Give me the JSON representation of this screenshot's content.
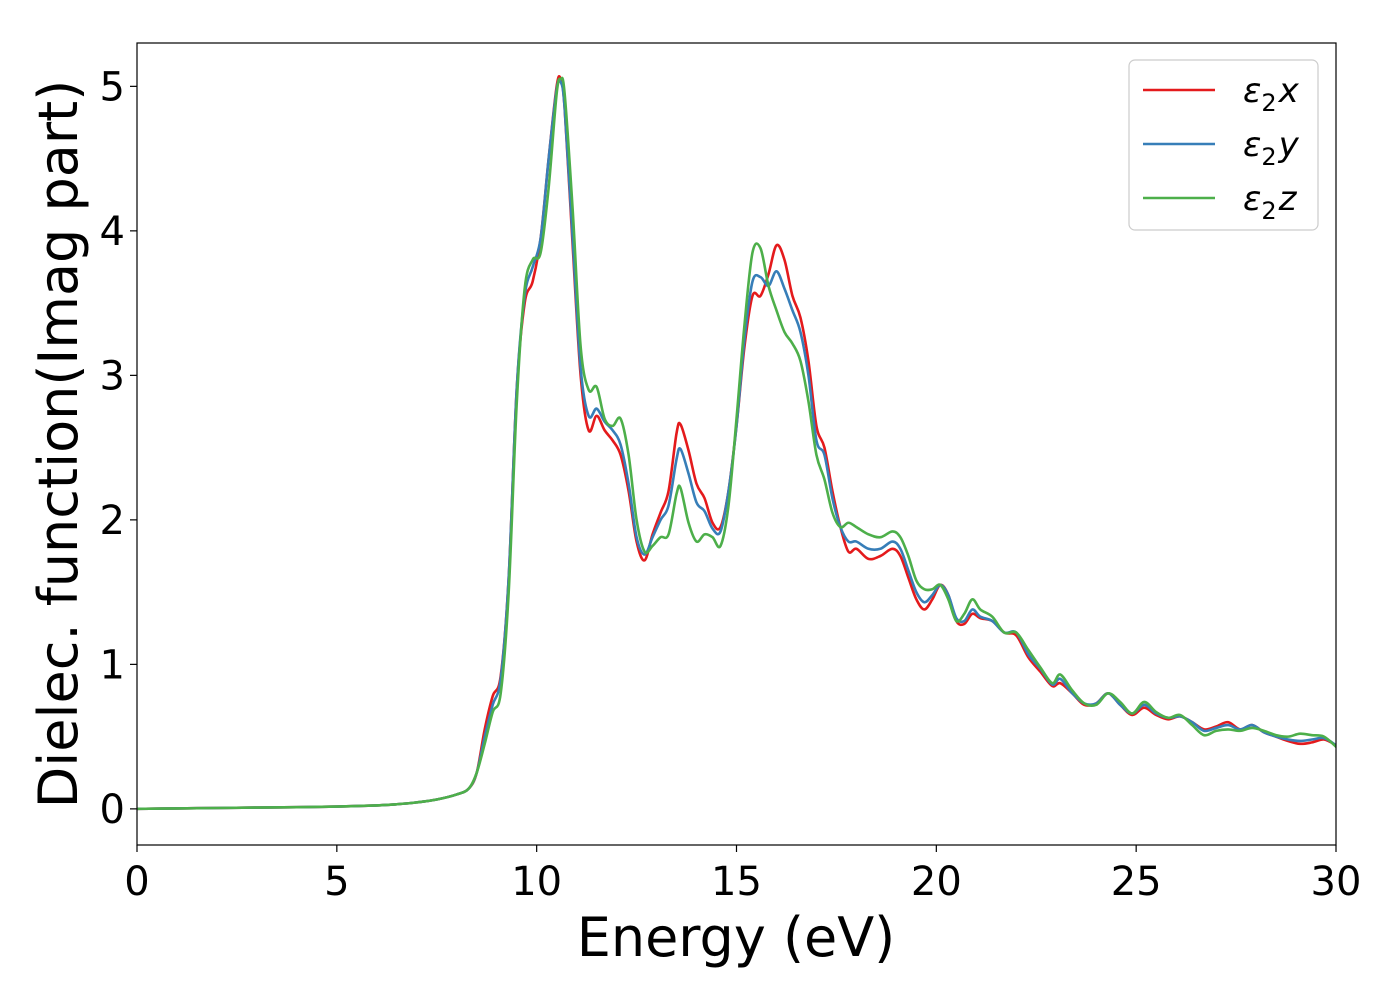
{
  "chart_data": {
    "type": "line",
    "xlabel": "Energy (eV)",
    "ylabel": "Dielec. function(Imag part)",
    "xlim": [
      0,
      30
    ],
    "ylim": [
      -0.25,
      5.3
    ],
    "xticks": [
      0,
      5,
      10,
      15,
      20,
      25,
      30
    ],
    "yticks": [
      0,
      1,
      2,
      3,
      4,
      5
    ],
    "grid": false,
    "legend_position": "top-right",
    "series": [
      {
        "name": "ε₂x",
        "legend": {
          "base": "ε",
          "sub": "2",
          "suffix": "x"
        },
        "color": "#e41a1c",
        "x": [
          0,
          1,
          2,
          3,
          4,
          5,
          6,
          6.5,
          7,
          7.5,
          8,
          8.3,
          8.5,
          8.7,
          8.9,
          9.1,
          9.3,
          9.5,
          9.7,
          9.9,
          10.1,
          10.3,
          10.5,
          10.6,
          10.7,
          10.9,
          11.1,
          11.3,
          11.5,
          11.7,
          11.9,
          12.1,
          12.3,
          12.5,
          12.7,
          12.9,
          13.1,
          13.3,
          13.5,
          13.6,
          13.8,
          14.0,
          14.2,
          14.4,
          14.6,
          14.8,
          15.0,
          15.2,
          15.4,
          15.6,
          15.8,
          16.0,
          16.2,
          16.4,
          16.6,
          16.8,
          17.0,
          17.2,
          17.4,
          17.6,
          17.8,
          18.0,
          18.3,
          18.6,
          18.9,
          19.1,
          19.3,
          19.5,
          19.7,
          19.9,
          20.1,
          20.3,
          20.5,
          20.7,
          20.9,
          21.1,
          21.4,
          21.7,
          22.0,
          22.3,
          22.6,
          22.9,
          23.1,
          23.4,
          23.7,
          24.0,
          24.3,
          24.6,
          24.9,
          25.2,
          25.5,
          25.8,
          26.1,
          26.4,
          26.7,
          27.0,
          27.3,
          27.6,
          27.9,
          28.2,
          28.5,
          28.8,
          29.1,
          29.4,
          29.7,
          30
        ],
        "y": [
          0.0,
          0.003,
          0.006,
          0.009,
          0.012,
          0.016,
          0.024,
          0.032,
          0.045,
          0.065,
          0.1,
          0.14,
          0.25,
          0.55,
          0.78,
          0.92,
          1.6,
          2.9,
          3.5,
          3.65,
          3.95,
          4.5,
          5.0,
          5.05,
          4.85,
          3.9,
          3.0,
          2.62,
          2.72,
          2.62,
          2.55,
          2.45,
          2.2,
          1.85,
          1.72,
          1.9,
          2.05,
          2.2,
          2.6,
          2.66,
          2.48,
          2.25,
          2.15,
          1.98,
          1.95,
          2.2,
          2.65,
          3.2,
          3.55,
          3.55,
          3.7,
          3.9,
          3.8,
          3.55,
          3.4,
          3.1,
          2.65,
          2.5,
          2.2,
          1.95,
          1.78,
          1.8,
          1.73,
          1.75,
          1.8,
          1.75,
          1.6,
          1.45,
          1.38,
          1.45,
          1.55,
          1.48,
          1.3,
          1.28,
          1.35,
          1.32,
          1.3,
          1.22,
          1.2,
          1.05,
          0.95,
          0.85,
          0.87,
          0.8,
          0.72,
          0.73,
          0.8,
          0.72,
          0.65,
          0.7,
          0.65,
          0.62,
          0.64,
          0.6,
          0.55,
          0.57,
          0.6,
          0.55,
          0.58,
          0.53,
          0.5,
          0.47,
          0.45,
          0.46,
          0.48,
          0.44
        ]
      },
      {
        "name": "ε₂y",
        "legend": {
          "base": "ε",
          "sub": "2",
          "suffix": "y"
        },
        "color": "#377eb8",
        "x": [
          0,
          1,
          2,
          3,
          4,
          5,
          6,
          6.5,
          7,
          7.5,
          8,
          8.3,
          8.5,
          8.7,
          8.9,
          9.1,
          9.3,
          9.5,
          9.7,
          9.9,
          10.1,
          10.3,
          10.5,
          10.6,
          10.7,
          10.9,
          11.1,
          11.3,
          11.5,
          11.7,
          11.9,
          12.1,
          12.3,
          12.5,
          12.7,
          12.9,
          13.1,
          13.3,
          13.5,
          13.6,
          13.8,
          14.0,
          14.2,
          14.4,
          14.6,
          14.8,
          15.0,
          15.2,
          15.4,
          15.6,
          15.8,
          16.0,
          16.2,
          16.4,
          16.6,
          16.8,
          17.0,
          17.2,
          17.4,
          17.6,
          17.8,
          18.0,
          18.3,
          18.6,
          18.9,
          19.1,
          19.3,
          19.5,
          19.7,
          19.9,
          20.1,
          20.3,
          20.5,
          20.7,
          20.9,
          21.1,
          21.4,
          21.7,
          22.0,
          22.3,
          22.6,
          22.9,
          23.1,
          23.4,
          23.7,
          24.0,
          24.3,
          24.6,
          24.9,
          25.2,
          25.5,
          25.8,
          26.1,
          26.4,
          26.7,
          27.0,
          27.3,
          27.6,
          27.9,
          28.2,
          28.5,
          28.8,
          29.1,
          29.4,
          29.7,
          30
        ],
        "y": [
          0.0,
          0.003,
          0.006,
          0.009,
          0.012,
          0.016,
          0.024,
          0.032,
          0.045,
          0.065,
          0.1,
          0.14,
          0.25,
          0.5,
          0.72,
          0.9,
          1.6,
          2.9,
          3.55,
          3.75,
          3.95,
          4.5,
          4.98,
          5.03,
          4.85,
          3.95,
          3.05,
          2.72,
          2.77,
          2.68,
          2.62,
          2.52,
          2.25,
          1.88,
          1.76,
          1.88,
          2.0,
          2.1,
          2.42,
          2.49,
          2.32,
          2.12,
          2.06,
          1.94,
          1.92,
          2.2,
          2.65,
          3.25,
          3.65,
          3.68,
          3.62,
          3.72,
          3.6,
          3.45,
          3.3,
          3.0,
          2.55,
          2.45,
          2.15,
          1.95,
          1.85,
          1.85,
          1.8,
          1.8,
          1.85,
          1.8,
          1.65,
          1.5,
          1.43,
          1.48,
          1.55,
          1.48,
          1.32,
          1.3,
          1.38,
          1.33,
          1.3,
          1.22,
          1.22,
          1.07,
          0.97,
          0.86,
          0.9,
          0.8,
          0.73,
          0.73,
          0.8,
          0.72,
          0.66,
          0.72,
          0.66,
          0.63,
          0.64,
          0.6,
          0.54,
          0.56,
          0.58,
          0.55,
          0.58,
          0.53,
          0.5,
          0.48,
          0.47,
          0.48,
          0.49,
          0.44
        ]
      },
      {
        "name": "ε₂z",
        "legend": {
          "base": "ε",
          "sub": "2",
          "suffix": "z"
        },
        "color": "#4daf4a",
        "x": [
          0,
          1,
          2,
          3,
          4,
          5,
          6,
          6.5,
          7,
          7.5,
          8,
          8.3,
          8.5,
          8.7,
          8.9,
          9.1,
          9.3,
          9.5,
          9.7,
          9.9,
          10.1,
          10.3,
          10.5,
          10.6,
          10.7,
          10.9,
          11.1,
          11.3,
          11.5,
          11.7,
          11.9,
          12.1,
          12.3,
          12.5,
          12.7,
          12.9,
          13.1,
          13.3,
          13.5,
          13.6,
          13.8,
          14.0,
          14.2,
          14.4,
          14.6,
          14.8,
          15.0,
          15.2,
          15.4,
          15.6,
          15.8,
          16.0,
          16.2,
          16.4,
          16.6,
          16.8,
          17.0,
          17.2,
          17.4,
          17.6,
          17.8,
          18.0,
          18.3,
          18.6,
          18.9,
          19.1,
          19.3,
          19.5,
          19.7,
          19.9,
          20.1,
          20.3,
          20.5,
          20.7,
          20.9,
          21.1,
          21.4,
          21.7,
          22.0,
          22.3,
          22.6,
          22.9,
          23.1,
          23.4,
          23.7,
          24.0,
          24.3,
          24.6,
          24.9,
          25.2,
          25.5,
          25.8,
          26.1,
          26.4,
          26.7,
          27.0,
          27.3,
          27.6,
          27.9,
          28.2,
          28.5,
          28.8,
          29.1,
          29.4,
          29.7,
          30
        ],
        "y": [
          0.0,
          0.003,
          0.006,
          0.009,
          0.012,
          0.016,
          0.024,
          0.032,
          0.045,
          0.065,
          0.1,
          0.14,
          0.25,
          0.45,
          0.67,
          0.8,
          1.5,
          2.8,
          3.6,
          3.8,
          3.85,
          4.3,
          4.95,
          5.05,
          4.95,
          4.15,
          3.2,
          2.9,
          2.92,
          2.7,
          2.65,
          2.7,
          2.45,
          2.0,
          1.78,
          1.82,
          1.88,
          1.9,
          2.18,
          2.22,
          1.98,
          1.85,
          1.9,
          1.88,
          1.82,
          2.1,
          2.7,
          3.35,
          3.85,
          3.88,
          3.62,
          3.45,
          3.3,
          3.22,
          3.1,
          2.82,
          2.45,
          2.28,
          2.05,
          1.95,
          1.98,
          1.95,
          1.9,
          1.88,
          1.92,
          1.88,
          1.75,
          1.58,
          1.52,
          1.52,
          1.55,
          1.45,
          1.3,
          1.35,
          1.45,
          1.38,
          1.33,
          1.22,
          1.22,
          1.1,
          0.98,
          0.87,
          0.93,
          0.82,
          0.73,
          0.72,
          0.8,
          0.74,
          0.66,
          0.74,
          0.67,
          0.63,
          0.65,
          0.58,
          0.51,
          0.54,
          0.55,
          0.54,
          0.56,
          0.54,
          0.51,
          0.5,
          0.52,
          0.51,
          0.5,
          0.43
        ]
      }
    ]
  }
}
